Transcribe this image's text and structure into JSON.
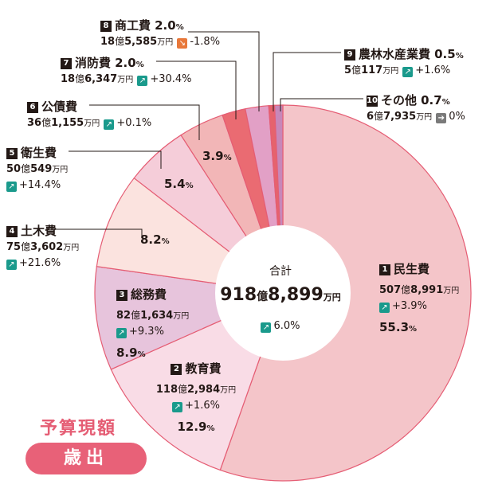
{
  "chart_data": {
    "type": "pie",
    "title": "予算現額",
    "subtitle": "歳出",
    "total": {
      "label": "合計",
      "oku": "918",
      "man": "8,899",
      "change": "6.0%",
      "change_dir": "up"
    },
    "slices": [
      {
        "num": "1",
        "name": "民生費",
        "oku": "507",
        "man": "8,991",
        "change": "+3.9%",
        "change_dir": "up",
        "pct": 55.3,
        "pct_label": "55.3",
        "color": "#f4c5c9"
      },
      {
        "num": "2",
        "name": "教育費",
        "oku": "118",
        "man": "2,984",
        "change": "+1.6%",
        "change_dir": "up",
        "pct": 12.9,
        "pct_label": "12.9",
        "color": "#f9dce6"
      },
      {
        "num": "3",
        "name": "総務費",
        "oku": "82",
        "man": "1,634",
        "change": "+9.3%",
        "change_dir": "up",
        "pct": 8.9,
        "pct_label": "8.9",
        "color": "#e7c4dc"
      },
      {
        "num": "4",
        "name": "土木費",
        "oku": "75",
        "man": "3,602",
        "change": "+21.6%",
        "change_dir": "up",
        "pct": 8.2,
        "pct_label": "8.2",
        "color": "#fbe3df"
      },
      {
        "num": "5",
        "name": "衛生費",
        "oku": "50",
        "man": "549",
        "change": "+14.4%",
        "change_dir": "up",
        "pct": 5.4,
        "pct_label": "5.4",
        "color": "#f5cdd9"
      },
      {
        "num": "6",
        "name": "公債費",
        "oku": "36",
        "man": "1,155",
        "change": "+0.1%",
        "change_dir": "up",
        "pct": 3.9,
        "pct_label": "3.9",
        "color": "#f2b6b7"
      },
      {
        "num": "7",
        "name": "消防費",
        "oku": "18",
        "man": "6,347",
        "change": "+30.4%",
        "change_dir": "up",
        "pct": 2.0,
        "pct_label": "2.0",
        "color": "#ea6b72"
      },
      {
        "num": "8",
        "name": "商工費",
        "oku": "18",
        "man": "5,585",
        "change": "-1.8%",
        "change_dir": "down",
        "pct": 2.0,
        "pct_label": "2.0",
        "color": "#e2a0c6"
      },
      {
        "num": "9",
        "name": "農林水産業費",
        "oku": "5",
        "man": "117",
        "change": "+1.6%",
        "change_dir": "up",
        "pct": 0.5,
        "pct_label": "0.5",
        "color": "#e5636d"
      },
      {
        "num": "10",
        "name": "その他",
        "oku": "6",
        "man": "7,935",
        "change": "0%",
        "change_dir": "flat",
        "pct": 0.7,
        "pct_label": "0.7",
        "color": "#c787b9"
      }
    ],
    "units": {
      "oku": "億",
      "man": "万円",
      "pct": "%"
    }
  }
}
